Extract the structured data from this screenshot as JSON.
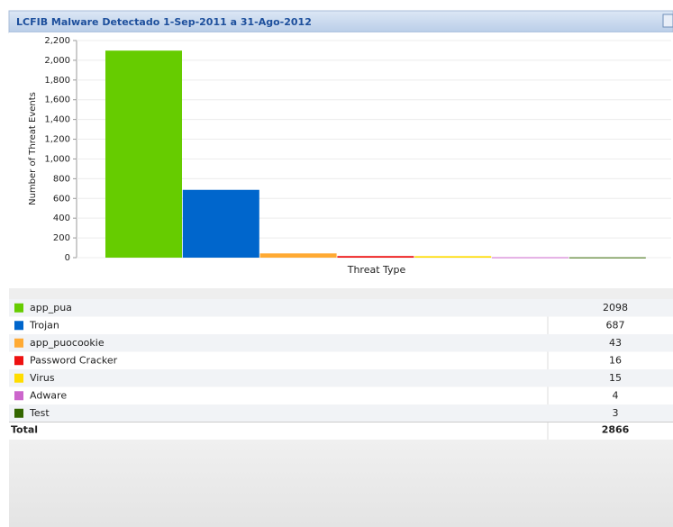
{
  "chart_data": {
    "type": "bar",
    "title": "LCFIB Malware Detectado 1-Sep-2011 a 31-Ago-2012",
    "y_label": "Number of Threat Events",
    "x_label": "Threat Type",
    "ylim": [
      0,
      2200
    ],
    "yticks": [
      0,
      200,
      400,
      600,
      800,
      {
        "value": 1000,
        "label": "1,000"
      },
      {
        "value": 1200,
        "label": "1,200"
      },
      {
        "value": 1400,
        "label": "1,400"
      },
      {
        "value": 1600,
        "label": "1,600"
      },
      {
        "value": 1800,
        "label": "1,800"
      },
      {
        "value": 2000,
        "label": "2,000"
      },
      {
        "value": 2200,
        "label": "2,200"
      }
    ],
    "grid": true,
    "series": [
      {
        "name": "app_pua",
        "color": "#66cc00",
        "values": [
          2098
        ]
      },
      {
        "name": "Trojan",
        "color": "#0066cc",
        "values": [
          687
        ]
      },
      {
        "name": "app_puocookie",
        "color": "#ffaa33",
        "values": [
          43
        ]
      },
      {
        "name": "Password Cracker",
        "color": "#ee1111",
        "values": [
          16
        ]
      },
      {
        "name": "Virus",
        "color": "#ffdd00",
        "values": [
          15
        ]
      },
      {
        "name": "Adware",
        "color": "#cc66cc",
        "values": [
          4
        ]
      },
      {
        "name": "Test",
        "color": "#336600",
        "values": [
          3
        ]
      }
    ]
  },
  "table": {
    "total_label": "Total",
    "total": 2866
  }
}
